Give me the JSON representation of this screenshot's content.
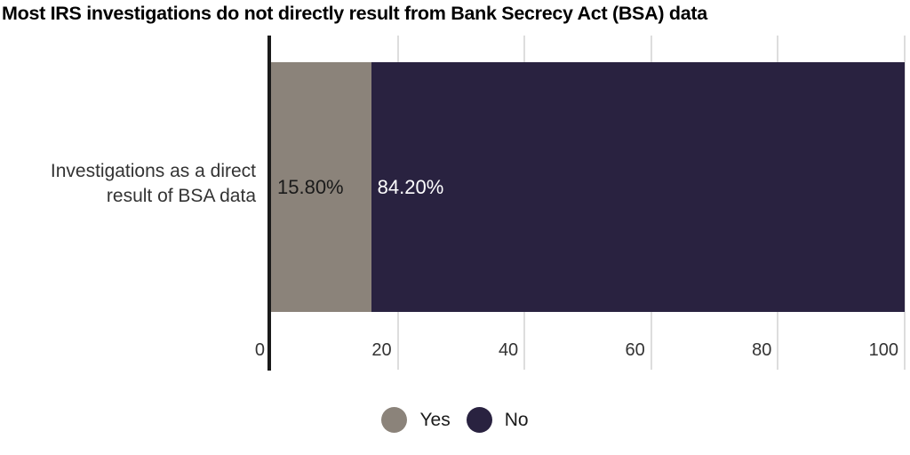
{
  "chart_data": {
    "type": "bar",
    "orientation": "horizontal",
    "stacked": true,
    "title": "Most IRS investigations do not directly result from Bank Secrecy Act (BSA) data",
    "categories": [
      "Investigations as a direct result of BSA data"
    ],
    "category_label_lines": [
      "Investigations as a direct",
      "result of BSA data"
    ],
    "series": [
      {
        "name": "Yes",
        "value": 15.8,
        "label": "15.80%",
        "color": "#8b837a",
        "label_color": "#1a1a1a"
      },
      {
        "name": "No",
        "value": 84.2,
        "label": "84.20%",
        "color": "#292240",
        "label_color": "#ffffff"
      }
    ],
    "xlabel": "",
    "ylabel": "",
    "xlim": [
      0,
      100
    ],
    "x_ticks": [
      0,
      20,
      40,
      60,
      80,
      100
    ],
    "grid": "vertical",
    "legend_position": "bottom",
    "colors": {
      "axis": "#1a1a1a",
      "gridline": "#dddddd",
      "tick_text": "#333333",
      "title_text": "#000000",
      "background": "#ffffff"
    }
  }
}
